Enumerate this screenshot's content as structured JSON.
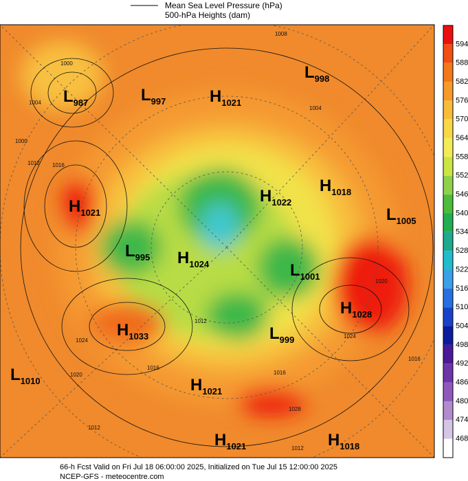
{
  "header": {
    "lines": [
      "Mean Sea Level Pressure (hPa)",
      "500-hPa Heights (dam)"
    ]
  },
  "colorbar": {
    "labels": [
      594,
      588,
      582,
      576,
      570,
      564,
      558,
      552,
      546,
      540,
      534,
      528,
      522,
      516,
      510,
      504,
      498,
      492,
      486,
      480,
      474,
      468
    ]
  },
  "centers": [
    {
      "type": "L",
      "value": 987
    },
    {
      "type": "L",
      "value": 997
    },
    {
      "type": "H",
      "value": 1021
    },
    {
      "type": "L",
      "value": 998
    },
    {
      "type": "H",
      "value": 1021
    },
    {
      "type": "L",
      "value": 995
    },
    {
      "type": "H",
      "value": 1024
    },
    {
      "type": "H",
      "value": 1022
    },
    {
      "type": "H",
      "value": 1018
    },
    {
      "type": "L",
      "value": 1005
    },
    {
      "type": "L",
      "value": 1001
    },
    {
      "type": "H",
      "value": 1028
    },
    {
      "type": "H",
      "value": 1033
    },
    {
      "type": "L",
      "value": 999
    },
    {
      "type": "L",
      "value": 1010
    },
    {
      "type": "H",
      "value": 1021
    },
    {
      "type": "H",
      "value": 1021
    },
    {
      "type": "H",
      "value": 1018
    }
  ],
  "isobar_labels": [
    1000,
    1004,
    1000,
    1012,
    1016,
    1008,
    1004,
    1024,
    1020,
    1016,
    1012,
    1016,
    1028,
    1024,
    1020,
    1016,
    1012,
    1012
  ],
  "footer": {
    "lines": [
      "66-h Fcst Valid on Fri Jul 18 06:00:00 2025, Initialized on Tue Jul 15 12:00:00 2025",
      "NCEP-GFS  - meteocentre.com"
    ]
  }
}
